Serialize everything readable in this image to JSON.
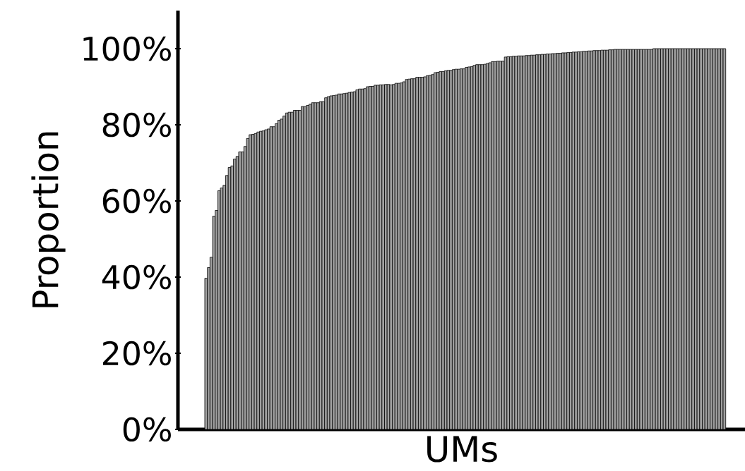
{
  "chart_data": {
    "type": "bar",
    "xlabel": "UMs",
    "ylabel": "Proportion",
    "color": "#a0a0a0",
    "categories": [
      null,
      null,
      null,
      null,
      null,
      null,
      null,
      null,
      null,
      null,
      null,
      null,
      null,
      null,
      null,
      null,
      null,
      null,
      null,
      null,
      null,
      null,
      null,
      null,
      null,
      null,
      null,
      null,
      null,
      null,
      null,
      null,
      null,
      null,
      null,
      null,
      null,
      null,
      null,
      null,
      null,
      null,
      null,
      null,
      null,
      null,
      null,
      null,
      null,
      null,
      null,
      null,
      null,
      null,
      null,
      null,
      null,
      null,
      null,
      null,
      null,
      null,
      null,
      null,
      null,
      null,
      null,
      null,
      null,
      null,
      null,
      null,
      null,
      null,
      null,
      null,
      null,
      null,
      null,
      null,
      null,
      null,
      null,
      null,
      null,
      null,
      null,
      null,
      null,
      null,
      null,
      null,
      null,
      null,
      null,
      null,
      null,
      null,
      null,
      null,
      null,
      null,
      null,
      null,
      null,
      null,
      null,
      null,
      null,
      null,
      null,
      null,
      null,
      null,
      null,
      null,
      null,
      null,
      null,
      null,
      null,
      null,
      null,
      null,
      null,
      null,
      null,
      null,
      null,
      null,
      null,
      null,
      null,
      null,
      null,
      null,
      null,
      null,
      null,
      null,
      null,
      null,
      null,
      null,
      null,
      null,
      null,
      null,
      null,
      null,
      null,
      null,
      null,
      null,
      null,
      null,
      null,
      null,
      null,
      null,
      null,
      null,
      null,
      null,
      null,
      null,
      null,
      null,
      null,
      null,
      null,
      null,
      null,
      null,
      null,
      null,
      null,
      null,
      null,
      null,
      null,
      null,
      null,
      null,
      null,
      null,
      null,
      null,
      null,
      null,
      null,
      null,
      null,
      null,
      null,
      null,
      null,
      null,
      null,
      null
    ],
    "values": [
      39.7,
      42.5,
      45.2,
      56.0,
      57.5,
      62.7,
      63.4,
      64.1,
      66.7,
      68.8,
      69.2,
      71.0,
      71.7,
      72.9,
      72.9,
      74.3,
      76.4,
      77.4,
      77.5,
      77.7,
      78.1,
      78.3,
      78.4,
      78.7,
      78.9,
      79.5,
      79.5,
      80.3,
      81.2,
      81.5,
      82.3,
      83.1,
      83.3,
      83.3,
      83.8,
      83.8,
      83.8,
      84.8,
      84.8,
      85.1,
      85.4,
      85.8,
      85.8,
      85.8,
      86.1,
      86.1,
      87.1,
      87.4,
      87.6,
      87.7,
      87.8,
      88.1,
      88.1,
      88.2,
      88.3,
      88.5,
      88.6,
      88.7,
      89.2,
      89.4,
      89.4,
      89.5,
      90.0,
      90.1,
      90.1,
      90.4,
      90.4,
      90.5,
      90.5,
      90.6,
      90.6,
      90.5,
      90.6,
      90.9,
      90.9,
      91.0,
      91.3,
      91.9,
      92.0,
      92.1,
      92.1,
      92.5,
      92.5,
      92.5,
      92.6,
      92.9,
      93.0,
      93.2,
      93.7,
      93.8,
      94.0,
      94.0,
      94.2,
      94.3,
      94.3,
      94.5,
      94.6,
      94.6,
      94.7,
      94.7,
      95.1,
      95.2,
      95.3,
      95.6,
      95.8,
      95.8,
      95.8,
      95.9,
      96.1,
      96.3,
      96.6,
      96.6,
      96.7,
      96.7,
      96.7,
      97.8,
      97.9,
      97.9,
      98.0,
      98.0,
      98.1,
      98.1,
      98.1,
      98.2,
      98.2,
      98.3,
      98.3,
      98.4,
      98.4,
      98.5,
      98.5,
      98.6,
      98.6,
      98.7,
      98.7,
      98.8,
      98.8,
      98.9,
      98.9,
      99.0,
      99.0,
      99.1,
      99.1,
      99.2,
      99.2,
      99.3,
      99.3,
      99.4,
      99.4,
      99.5,
      99.5,
      99.5,
      99.6,
      99.6,
      99.6,
      99.7,
      99.7,
      99.8,
      99.8,
      99.8,
      99.8,
      99.8,
      99.8,
      99.8,
      99.8,
      99.8,
      99.8,
      99.8,
      99.8,
      99.8,
      99.8,
      99.8,
      100.0,
      100.0,
      100.0,
      100.0,
      100.0,
      100.0,
      100.0,
      100.0,
      100.0,
      100.0,
      100.0,
      100.0,
      100.0,
      100.0,
      100.0,
      100.0,
      100.0,
      100.0,
      100.0,
      100.0,
      100.0,
      100.0,
      100.0,
      100.0,
      100.0,
      100.0,
      100.0,
      100.0
    ],
    "ylim": [
      0,
      110
    ],
    "yticks": [
      {
        "value": 0,
        "label": "0%"
      },
      {
        "value": 20,
        "label": "20%"
      },
      {
        "value": 40,
        "label": "40%"
      },
      {
        "value": 60,
        "label": "60%"
      },
      {
        "value": 80,
        "label": "80%"
      },
      {
        "value": 100,
        "label": "100%"
      }
    ]
  }
}
